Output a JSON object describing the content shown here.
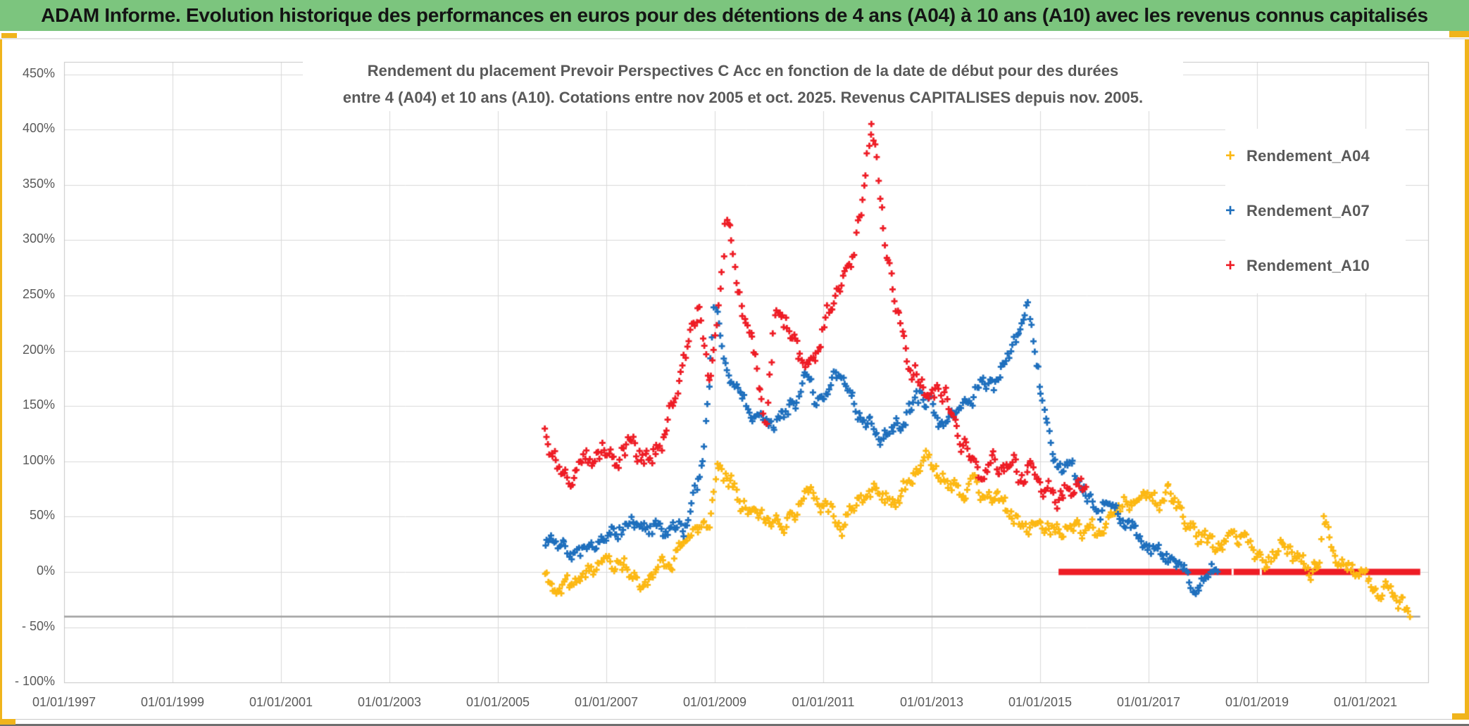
{
  "header": {
    "title": "ADAM Informe. Evolution historique des performances en euros pour des détentions de 4 ans (A04) à 10 ans (A10) avec les revenus connus capitalisés"
  },
  "accents": {
    "gold": "#f0b41c",
    "header_green": "#7cc57e",
    "footer_line_gray": "#6f6f6f"
  },
  "chart_data": {
    "type": "scatter",
    "title_line1": "Rendement du placement Prevoir Perspectives C Acc en fonction de la date de début pour des durées",
    "title_line2": "entre 4 (A04) et 10 ans (A10). Cotations entre nov 2005 et oct. 2025. Revenus CAPITALISES depuis nov. 2005.",
    "grid": true,
    "legend_position": "right-inside",
    "text_color": "#595959",
    "gridline_color": "#d9d9d9",
    "border_color": "#c4c4c4",
    "x_axis": {
      "ticks": [
        {
          "year": 1997,
          "label": "01/01/1997"
        },
        {
          "year": 1999,
          "label": "01/01/1999"
        },
        {
          "year": 2001,
          "label": "01/01/2001"
        },
        {
          "year": 2003,
          "label": "01/01/2003"
        },
        {
          "year": 2005,
          "label": "01/01/2005"
        },
        {
          "year": 2007,
          "label": "01/01/2007"
        },
        {
          "year": 2009,
          "label": "01/01/2009"
        },
        {
          "year": 2011,
          "label": "01/01/2011"
        },
        {
          "year": 2013,
          "label": "01/01/2013"
        },
        {
          "year": 2015,
          "label": "01/01/2015"
        },
        {
          "year": 2017,
          "label": "01/01/2017"
        },
        {
          "year": 2019,
          "label": "01/01/2019"
        },
        {
          "year": 2021,
          "label": "01/01/2021"
        }
      ],
      "range_years": [
        1997.0,
        2022.17
      ]
    },
    "y_axis": {
      "min": -100,
      "max": 450,
      "ticks": [
        {
          "value": 450,
          "label": "450%"
        },
        {
          "value": 400,
          "label": "400%"
        },
        {
          "value": 350,
          "label": "350%"
        },
        {
          "value": 300,
          "label": "300%"
        },
        {
          "value": 250,
          "label": "250%"
        },
        {
          "value": 200,
          "label": "200%"
        },
        {
          "value": 150,
          "label": "150%"
        },
        {
          "value": 100,
          "label": "100%"
        },
        {
          "value": 50,
          "label": "50%"
        },
        {
          "value": 0,
          "label": "0%"
        },
        {
          "value": -50,
          "label": "- 50%"
        },
        {
          "value": -100,
          "label": "- 100%"
        }
      ]
    },
    "reference_lines": [
      {
        "value": -40,
        "from": 1997.0,
        "to": 2022.01,
        "color": "#9e9e9e",
        "width": 2.5
      }
    ],
    "series": [
      {
        "name": "Rendement_A04",
        "color": "#fcb813",
        "marker": "+",
        "seed": 11,
        "points_per_year": 34,
        "noise": 13,
        "jitter": 4,
        "trend": [
          [
            2005.87,
            -2
          ],
          [
            2006.0,
            -8
          ],
          [
            2006.2,
            -13
          ],
          [
            2006.45,
            -11
          ],
          [
            2006.7,
            -4
          ],
          [
            2006.9,
            2
          ],
          [
            2007.1,
            5
          ],
          [
            2007.3,
            7
          ],
          [
            2007.5,
            0
          ],
          [
            2007.7,
            -12
          ],
          [
            2007.85,
            -8
          ],
          [
            2008.0,
            6
          ],
          [
            2008.2,
            16
          ],
          [
            2008.45,
            22
          ],
          [
            2008.7,
            30
          ],
          [
            2008.9,
            42
          ],
          [
            2009.0,
            75
          ],
          [
            2009.05,
            100
          ],
          [
            2009.15,
            88
          ],
          [
            2009.3,
            82
          ],
          [
            2009.5,
            70
          ],
          [
            2009.7,
            56
          ],
          [
            2009.9,
            48
          ],
          [
            2010.1,
            47
          ],
          [
            2010.3,
            50
          ],
          [
            2010.5,
            60
          ],
          [
            2010.65,
            72
          ],
          [
            2010.8,
            75
          ],
          [
            2011.0,
            62
          ],
          [
            2011.2,
            50
          ],
          [
            2011.35,
            45
          ],
          [
            2011.5,
            55
          ],
          [
            2011.65,
            68
          ],
          [
            2011.8,
            62
          ],
          [
            2011.95,
            80
          ],
          [
            2012.1,
            75
          ],
          [
            2012.25,
            65
          ],
          [
            2012.4,
            70
          ],
          [
            2012.55,
            78
          ],
          [
            2012.7,
            88
          ],
          [
            2012.85,
            95
          ],
          [
            2013.0,
            95
          ],
          [
            2013.15,
            85
          ],
          [
            2013.3,
            78
          ],
          [
            2013.5,
            72
          ],
          [
            2013.7,
            75
          ],
          [
            2013.9,
            70
          ],
          [
            2014.1,
            72
          ],
          [
            2014.3,
            60
          ],
          [
            2014.5,
            50
          ],
          [
            2014.7,
            42
          ],
          [
            2014.9,
            38
          ],
          [
            2015.1,
            35
          ],
          [
            2015.3,
            38
          ],
          [
            2015.5,
            42
          ],
          [
            2015.7,
            40
          ],
          [
            2015.9,
            35
          ],
          [
            2016.1,
            38
          ],
          [
            2016.3,
            50
          ],
          [
            2016.5,
            60
          ],
          [
            2016.7,
            68
          ],
          [
            2016.9,
            74
          ],
          [
            2017.1,
            70
          ],
          [
            2017.25,
            65
          ],
          [
            2017.4,
            70
          ],
          [
            2017.6,
            55
          ],
          [
            2017.8,
            42
          ],
          [
            2018.0,
            32
          ],
          [
            2018.2,
            28
          ],
          [
            2018.4,
            25
          ],
          [
            2018.55,
            35
          ],
          [
            2018.65,
            30
          ],
          [
            2018.72,
            50
          ],
          [
            2018.8,
            35
          ],
          [
            2019.0,
            15
          ],
          [
            2019.2,
            8
          ],
          [
            2019.35,
            12
          ],
          [
            2019.5,
            28
          ],
          [
            2019.65,
            18
          ],
          [
            2019.8,
            5
          ],
          [
            2020.0,
            0
          ],
          [
            2020.15,
            8
          ],
          [
            2020.22,
            45
          ],
          [
            2020.3,
            35
          ],
          [
            2020.45,
            12
          ],
          [
            2020.6,
            5
          ],
          [
            2020.75,
            -2
          ],
          [
            2020.9,
            -8
          ],
          [
            2021.05,
            -12
          ],
          [
            2021.2,
            -20
          ],
          [
            2021.35,
            -15
          ],
          [
            2021.45,
            -12
          ],
          [
            2021.55,
            -22
          ],
          [
            2021.65,
            -30
          ],
          [
            2021.75,
            -33
          ],
          [
            2021.83,
            -36
          ]
        ]
      },
      {
        "name": "Rendement_A07",
        "color": "#1e6fbd",
        "marker": "+",
        "seed": 7,
        "points_per_year": 34,
        "noise": 13,
        "jitter": 4,
        "trend": [
          [
            2005.87,
            32
          ],
          [
            2006.0,
            28
          ],
          [
            2006.2,
            20
          ],
          [
            2006.35,
            14
          ],
          [
            2006.5,
            12
          ],
          [
            2006.7,
            20
          ],
          [
            2006.9,
            30
          ],
          [
            2007.1,
            35
          ],
          [
            2007.3,
            38
          ],
          [
            2007.5,
            40
          ],
          [
            2007.7,
            36
          ],
          [
            2007.9,
            38
          ],
          [
            2008.1,
            33
          ],
          [
            2008.3,
            30
          ],
          [
            2008.5,
            45
          ],
          [
            2008.65,
            70
          ],
          [
            2008.75,
            95
          ],
          [
            2008.82,
            115
          ],
          [
            2008.88,
            150
          ],
          [
            2008.95,
            200
          ],
          [
            2009.0,
            240
          ],
          [
            2009.05,
            225
          ],
          [
            2009.1,
            205
          ],
          [
            2009.2,
            185
          ],
          [
            2009.35,
            170
          ],
          [
            2009.5,
            160
          ],
          [
            2009.65,
            150
          ],
          [
            2009.8,
            140
          ],
          [
            2009.95,
            132
          ],
          [
            2010.1,
            138
          ],
          [
            2010.25,
            145
          ],
          [
            2010.4,
            152
          ],
          [
            2010.55,
            165
          ],
          [
            2010.7,
            175
          ],
          [
            2010.85,
            160
          ],
          [
            2011.0,
            158
          ],
          [
            2011.15,
            168
          ],
          [
            2011.3,
            178
          ],
          [
            2011.45,
            160
          ],
          [
            2011.6,
            145
          ],
          [
            2011.75,
            135
          ],
          [
            2011.9,
            128
          ],
          [
            2012.05,
            118
          ],
          [
            2012.2,
            125
          ],
          [
            2012.35,
            135
          ],
          [
            2012.5,
            142
          ],
          [
            2012.65,
            152
          ],
          [
            2012.8,
            158
          ],
          [
            2012.95,
            150
          ],
          [
            2013.1,
            142
          ],
          [
            2013.25,
            130
          ],
          [
            2013.4,
            138
          ],
          [
            2013.55,
            148
          ],
          [
            2013.7,
            158
          ],
          [
            2013.85,
            168
          ],
          [
            2014.0,
            175
          ],
          [
            2014.15,
            172
          ],
          [
            2014.3,
            180
          ],
          [
            2014.45,
            195
          ],
          [
            2014.6,
            215
          ],
          [
            2014.72,
            230
          ],
          [
            2014.78,
            242
          ],
          [
            2014.85,
            215
          ],
          [
            2014.95,
            185
          ],
          [
            2015.05,
            150
          ],
          [
            2015.15,
            128
          ],
          [
            2015.25,
            108
          ],
          [
            2015.35,
            98
          ],
          [
            2015.5,
            88
          ],
          [
            2015.65,
            78
          ],
          [
            2015.8,
            70
          ],
          [
            2015.95,
            62
          ],
          [
            2016.1,
            55
          ],
          [
            2016.25,
            60
          ],
          [
            2016.4,
            55
          ],
          [
            2016.55,
            48
          ],
          [
            2016.7,
            40
          ],
          [
            2016.85,
            32
          ],
          [
            2017.0,
            25
          ],
          [
            2017.15,
            18
          ],
          [
            2017.3,
            22
          ],
          [
            2017.45,
            12
          ],
          [
            2017.6,
            2
          ],
          [
            2017.7,
            -8
          ],
          [
            2017.8,
            -12
          ],
          [
            2017.9,
            -4
          ],
          [
            2018.0,
            4
          ],
          [
            2018.1,
            8
          ],
          [
            2018.2,
            2
          ],
          [
            2018.3,
            0
          ]
        ]
      },
      {
        "name": "Rendement_A10",
        "color": "#ee1c25",
        "marker": "+",
        "seed": 29,
        "points_per_year": 34,
        "noise": 16,
        "jitter": 5,
        "zero_pad": {
          "value": 0,
          "from": 2015.34,
          "to": 2022.01,
          "thickness": 9,
          "gaps": [
            2018.53,
            2019.05
          ]
        },
        "trend": [
          [
            2005.87,
            136
          ],
          [
            2005.95,
            120
          ],
          [
            2006.05,
            105
          ],
          [
            2006.15,
            97
          ],
          [
            2006.3,
            92
          ],
          [
            2006.45,
            100
          ],
          [
            2006.6,
            106
          ],
          [
            2006.75,
            102
          ],
          [
            2006.9,
            108
          ],
          [
            2007.05,
            112
          ],
          [
            2007.2,
            108
          ],
          [
            2007.35,
            112
          ],
          [
            2007.5,
            108
          ],
          [
            2007.65,
            100
          ],
          [
            2007.8,
            97
          ],
          [
            2007.95,
            110
          ],
          [
            2008.1,
            130
          ],
          [
            2008.25,
            160
          ],
          [
            2008.4,
            195
          ],
          [
            2008.55,
            220
          ],
          [
            2008.7,
            235
          ],
          [
            2008.8,
            210
          ],
          [
            2008.9,
            175
          ],
          [
            2008.97,
            195
          ],
          [
            2009.05,
            240
          ],
          [
            2009.12,
            280
          ],
          [
            2009.2,
            325
          ],
          [
            2009.28,
            300
          ],
          [
            2009.35,
            265
          ],
          [
            2009.45,
            240
          ],
          [
            2009.6,
            215
          ],
          [
            2009.75,
            185
          ],
          [
            2009.87,
            150
          ],
          [
            2009.95,
            135
          ],
          [
            2010.05,
            200
          ],
          [
            2010.12,
            250
          ],
          [
            2010.2,
            235
          ],
          [
            2010.35,
            215
          ],
          [
            2010.5,
            198
          ],
          [
            2010.65,
            188
          ],
          [
            2010.8,
            200
          ],
          [
            2010.95,
            212
          ],
          [
            2011.1,
            235
          ],
          [
            2011.25,
            252
          ],
          [
            2011.4,
            270
          ],
          [
            2011.55,
            288
          ],
          [
            2011.7,
            330
          ],
          [
            2011.8,
            375
          ],
          [
            2011.88,
            405
          ],
          [
            2011.95,
            395
          ],
          [
            2012.0,
            360
          ],
          [
            2012.08,
            330
          ],
          [
            2012.15,
            295
          ],
          [
            2012.25,
            268
          ],
          [
            2012.35,
            240
          ],
          [
            2012.45,
            222
          ],
          [
            2012.55,
            195
          ],
          [
            2012.7,
            178
          ],
          [
            2012.85,
            165
          ],
          [
            2013.0,
            152
          ],
          [
            2013.1,
            160
          ],
          [
            2013.2,
            168
          ],
          [
            2013.3,
            155
          ],
          [
            2013.45,
            135
          ],
          [
            2013.6,
            120
          ],
          [
            2013.75,
            105
          ],
          [
            2013.9,
            95
          ],
          [
            2014.1,
            100
          ],
          [
            2014.3,
            92
          ],
          [
            2014.5,
            98
          ],
          [
            2014.7,
            90
          ],
          [
            2014.85,
            95
          ],
          [
            2015.0,
            80
          ],
          [
            2015.15,
            70
          ],
          [
            2015.3,
            62
          ],
          [
            2015.45,
            72
          ],
          [
            2015.6,
            68
          ],
          [
            2015.75,
            70
          ],
          [
            2015.85,
            65
          ]
        ]
      }
    ]
  }
}
